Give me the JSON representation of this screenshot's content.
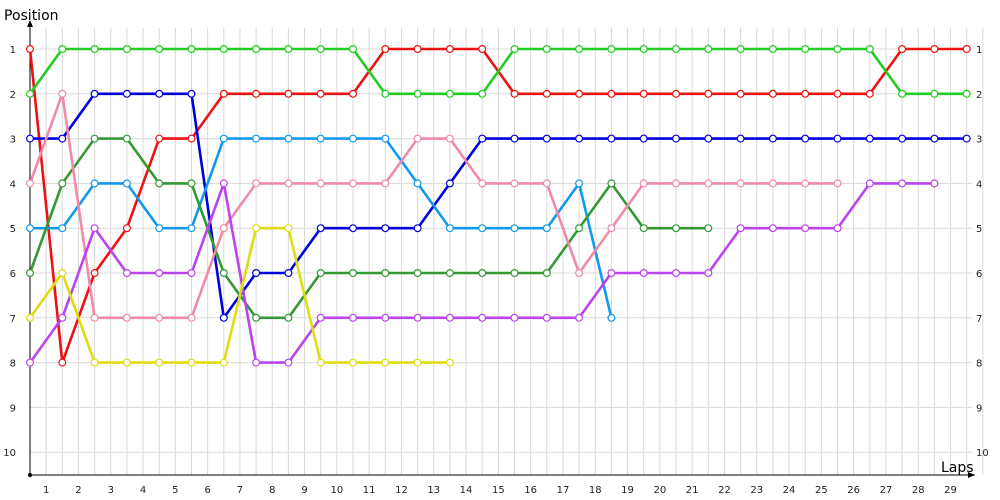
{
  "chart_data": {
    "type": "line",
    "title": "",
    "ylabel": "Position",
    "xlabel": "Laps",
    "x_ticks": [
      1,
      2,
      3,
      4,
      5,
      6,
      7,
      8,
      9,
      10,
      11,
      12,
      13,
      14,
      15,
      16,
      17,
      18,
      19,
      20,
      21,
      22,
      23,
      24,
      25,
      26,
      27,
      28,
      29
    ],
    "y_ticks": [
      1,
      2,
      3,
      4,
      5,
      6,
      7,
      8,
      9,
      10
    ],
    "xlim": [
      0,
      29.5
    ],
    "ylim": [
      10.5,
      1
    ],
    "y_inverted": true,
    "grid": true,
    "series": [
      {
        "color": "#ee1111",
        "x": [
          0,
          1,
          2,
          3,
          4,
          5,
          6,
          7,
          8,
          9,
          10,
          11,
          12,
          13,
          14,
          15,
          16,
          17,
          18,
          19,
          20,
          21,
          22,
          23,
          24,
          25,
          26,
          27,
          28,
          29
        ],
        "values": [
          1,
          8,
          6,
          5,
          3,
          3,
          2,
          2,
          2,
          2,
          2,
          1,
          1,
          1,
          1,
          2,
          2,
          2,
          2,
          2,
          2,
          2,
          2,
          2,
          2,
          2,
          2,
          1,
          1,
          1
        ]
      },
      {
        "color": "#22cc22",
        "x": [
          0,
          1,
          2,
          3,
          4,
          5,
          6,
          7,
          8,
          9,
          10,
          11,
          12,
          13,
          14,
          15,
          16,
          17,
          18,
          19,
          20,
          21,
          22,
          23,
          24,
          25,
          26,
          27,
          28,
          29
        ],
        "values": [
          2,
          1,
          1,
          1,
          1,
          1,
          1,
          1,
          1,
          1,
          1,
          2,
          2,
          2,
          2,
          1,
          1,
          1,
          1,
          1,
          1,
          1,
          1,
          1,
          1,
          1,
          1,
          2,
          2,
          2
        ]
      },
      {
        "color": "#0000dd",
        "x": [
          0,
          1,
          2,
          3,
          4,
          5,
          6,
          7,
          8,
          9,
          10,
          11,
          12,
          13,
          14,
          15,
          16,
          17,
          18,
          19,
          20,
          21,
          22,
          23,
          24,
          25,
          26,
          27,
          28,
          29
        ],
        "values": [
          3,
          3,
          2,
          2,
          2,
          2,
          7,
          6,
          6,
          5,
          5,
          5,
          5,
          4,
          3,
          3,
          3,
          3,
          3,
          3,
          3,
          3,
          3,
          3,
          3,
          3,
          3,
          3,
          3,
          3
        ]
      },
      {
        "color": "#1199ee",
        "x": [
          0,
          1,
          2,
          3,
          4,
          5,
          6,
          7,
          8,
          9,
          10,
          11,
          12,
          13,
          14,
          15,
          16,
          17,
          18
        ],
        "values": [
          5,
          5,
          4,
          4,
          5,
          5,
          3,
          3,
          3,
          3,
          3,
          3,
          4,
          5,
          5,
          5,
          5,
          4,
          7
        ]
      },
      {
        "color": "#339933",
        "x": [
          0,
          1,
          2,
          3,
          4,
          5,
          6,
          7,
          8,
          9,
          10,
          11,
          12,
          13,
          14,
          15,
          16,
          17,
          18,
          19,
          20,
          21
        ],
        "values": [
          6,
          4,
          3,
          3,
          4,
          4,
          6,
          7,
          7,
          6,
          6,
          6,
          6,
          6,
          6,
          6,
          6,
          5,
          4,
          5,
          5,
          5
        ]
      },
      {
        "color": "#f08aa8",
        "x": [
          0,
          1,
          2,
          3,
          4,
          5,
          6,
          7,
          8,
          9,
          10,
          11,
          12,
          13,
          14,
          15,
          16,
          17,
          18,
          19,
          20,
          21,
          22,
          23,
          24,
          25
        ],
        "values": [
          4,
          2,
          7,
          7,
          7,
          7,
          5,
          4,
          4,
          4,
          4,
          4,
          3,
          3,
          4,
          4,
          4,
          6,
          5,
          4,
          4,
          4,
          4,
          4,
          4,
          4
        ]
      },
      {
        "color": "#bb44ee",
        "x": [
          0,
          1,
          2,
          3,
          4,
          5,
          6,
          7,
          8,
          9,
          10,
          11,
          12,
          13,
          14,
          15,
          16,
          17,
          18,
          19,
          20,
          21,
          22,
          23,
          24,
          25,
          26,
          27,
          28
        ],
        "values": [
          8,
          7,
          5,
          6,
          6,
          6,
          4,
          8,
          8,
          7,
          7,
          7,
          7,
          7,
          7,
          7,
          7,
          7,
          6,
          6,
          6,
          6,
          5,
          5,
          5,
          5,
          4,
          4,
          4
        ]
      },
      {
        "color": "#dddd11",
        "x": [
          0,
          1,
          2,
          3,
          4,
          5,
          6,
          7,
          8,
          9,
          10,
          11,
          12,
          13
        ],
        "values": [
          7,
          6,
          8,
          8,
          8,
          8,
          8,
          5,
          5,
          8,
          8,
          8,
          8,
          8
        ]
      }
    ]
  }
}
